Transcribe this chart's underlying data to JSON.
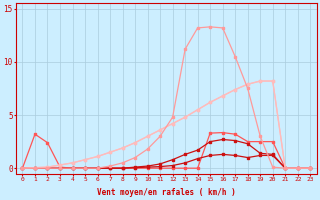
{
  "title": "",
  "xlabel": "Vent moyen/en rafales ( km/h )",
  "ylabel": "",
  "bg_color": "#cceeff",
  "grid_color": "#aaccdd",
  "x_ticks": [
    0,
    1,
    2,
    3,
    4,
    5,
    6,
    7,
    8,
    9,
    10,
    11,
    12,
    13,
    14,
    15,
    16,
    17,
    18,
    19,
    20,
    21,
    22,
    23
  ],
  "y_ticks": [
    0,
    5,
    10,
    15
  ],
  "xlim": [
    -0.5,
    23.5
  ],
  "ylim": [
    -0.5,
    15.5
  ],
  "line1_x": [
    0,
    1,
    2,
    3,
    4,
    5,
    6,
    7,
    8,
    9,
    10,
    11,
    12,
    13,
    14,
    15,
    16,
    17,
    18,
    19,
    20,
    21,
    22,
    23
  ],
  "line1_y": [
    0,
    3.2,
    2.4,
    0.1,
    0.0,
    0.0,
    0.0,
    0.0,
    0.0,
    0.0,
    0.0,
    0.0,
    0.0,
    0.0,
    0.0,
    3.3,
    3.35,
    3.2,
    2.5,
    2.5,
    2.5,
    0.0,
    0.0,
    0.0
  ],
  "line1_color": "#ff5555",
  "line1_lw": 0.9,
  "line1_marker": "s",
  "line1_ms": 1.8,
  "line2_x": [
    0,
    1,
    2,
    3,
    4,
    5,
    6,
    7,
    8,
    9,
    10,
    11,
    12,
    13,
    14,
    15,
    16,
    17,
    18,
    19,
    20,
    21,
    22,
    23
  ],
  "line2_y": [
    0,
    0,
    0,
    0,
    0,
    0,
    0,
    0,
    0,
    0.1,
    0.2,
    0.4,
    0.8,
    1.3,
    1.7,
    2.5,
    2.7,
    2.6,
    2.3,
    1.4,
    1.3,
    0.0,
    0.0,
    0.0
  ],
  "line2_color": "#cc1111",
  "line2_lw": 0.9,
  "line2_marker": "s",
  "line2_ms": 1.8,
  "line3_x": [
    0,
    1,
    2,
    3,
    4,
    5,
    6,
    7,
    8,
    9,
    10,
    11,
    12,
    13,
    14,
    15,
    16,
    17,
    18,
    19,
    20,
    21,
    22,
    23
  ],
  "line3_y": [
    0,
    0,
    0,
    0,
    0,
    0,
    0,
    0,
    0,
    0.05,
    0.1,
    0.15,
    0.25,
    0.5,
    0.9,
    1.2,
    1.3,
    1.2,
    1.0,
    1.2,
    1.2,
    0.0,
    0.0,
    0.0
  ],
  "line3_color": "#cc1111",
  "line3_lw": 0.9,
  "line3_marker": "s",
  "line3_ms": 1.8,
  "line4_x": [
    0,
    1,
    2,
    3,
    4,
    5,
    6,
    7,
    8,
    9,
    10,
    11,
    12,
    13,
    14,
    15,
    16,
    17,
    18,
    19,
    20,
    21,
    22,
    23
  ],
  "line4_y": [
    0.0,
    0.05,
    0.1,
    0.3,
    0.5,
    0.8,
    1.1,
    1.5,
    1.9,
    2.4,
    3.0,
    3.6,
    4.2,
    4.8,
    5.5,
    6.2,
    6.8,
    7.4,
    7.9,
    8.2,
    8.2,
    0.0,
    0.0,
    0.0
  ],
  "line4_color": "#ffbbbb",
  "line4_lw": 0.9,
  "line4_marker": "s",
  "line4_ms": 1.5,
  "line5_x": [
    0,
    1,
    2,
    3,
    4,
    5,
    6,
    7,
    8,
    9,
    10,
    11,
    12,
    13,
    14,
    15,
    16,
    17,
    18,
    19,
    20,
    21,
    22,
    23
  ],
  "line5_y": [
    0.0,
    0.05,
    0.1,
    0.3,
    0.5,
    0.8,
    1.1,
    1.5,
    1.9,
    2.4,
    3.0,
    3.6,
    4.2,
    4.8,
    5.5,
    6.2,
    6.8,
    7.4,
    7.9,
    8.2,
    8.2,
    0.0,
    0.0,
    0.0
  ],
  "line5_color": "#ffbbbb",
  "line5_lw": 0.9,
  "line5_marker": "s",
  "line5_ms": 1.5,
  "line6_x": [
    0,
    1,
    2,
    3,
    4,
    5,
    6,
    7,
    8,
    9,
    10,
    11,
    12,
    13,
    14,
    15,
    16,
    17,
    18,
    19,
    20,
    21,
    22,
    23
  ],
  "line6_y": [
    0,
    0,
    0,
    0,
    0,
    0,
    0,
    0.2,
    0.5,
    1.0,
    1.8,
    3.0,
    4.8,
    11.2,
    13.2,
    13.3,
    13.2,
    10.5,
    7.5,
    3.0,
    0.1,
    0.0,
    0.0,
    0.0
  ],
  "line6_color": "#ff9999",
  "line6_lw": 0.9,
  "line6_marker": "s",
  "line6_ms": 1.5
}
